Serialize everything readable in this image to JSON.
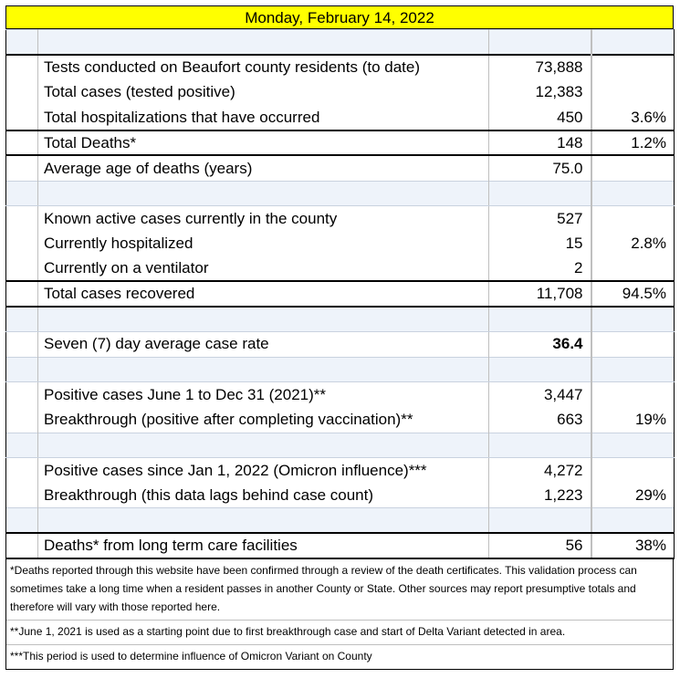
{
  "title": "Monday, February 14, 2022",
  "rows": {
    "tests": {
      "label": "Tests conducted on Beaufort county residents (to date)",
      "value": "73,888",
      "pct": ""
    },
    "total_cases": {
      "label": "Total cases (tested positive)",
      "value": "12,383",
      "pct": ""
    },
    "hospitalizations": {
      "label": "Total hospitalizations that have occurred",
      "value": "450",
      "pct": "3.6%"
    },
    "deaths": {
      "label": "Total Deaths*",
      "value": "148",
      "pct": "1.2%"
    },
    "avg_age": {
      "label": "Average age of deaths (years)",
      "value": "75.0",
      "pct": ""
    },
    "active": {
      "label": "Known active cases currently in the county",
      "value": "527",
      "pct": ""
    },
    "hospitalized": {
      "label": "Currently hospitalized",
      "value": "15",
      "pct": "2.8%"
    },
    "ventilator": {
      "label": "Currently on a ventilator",
      "value": "2",
      "pct": ""
    },
    "recovered": {
      "label": "Total cases recovered",
      "value": "11,708",
      "pct": "94.5%"
    },
    "seven_day": {
      "label": "Seven (7) day average case rate",
      "value": "36.4",
      "pct": ""
    },
    "pos_2021": {
      "label": "Positive cases  June 1 to Dec 31 (2021)**",
      "value": "3,447",
      "pct": ""
    },
    "break_2021": {
      "label": "Breakthrough (positive after completing vaccination)**",
      "value": "663",
      "pct": "19%"
    },
    "pos_2022": {
      "label": "Positive cases since Jan 1, 2022 (Omicron influence)***",
      "value": "4,272",
      "pct": ""
    },
    "break_2022": {
      "label": "Breakthrough (this data lags behind case count)",
      "value": "1,223",
      "pct": "29%"
    },
    "ltc_deaths": {
      "label": "Deaths* from long term care facilities",
      "value": "56",
      "pct": "38%"
    }
  },
  "notes": {
    "n1": "*Deaths reported through this website have been confirmed through a review of the death certificates.  This validation process can sometimes take a long time when a resident passes in another County or State.  Other sources may report presumptive totals and therefore will vary with those reported here.",
    "n2": "**June 1, 2021 is used as a starting point due to first breakthrough case and start of Delta Variant detected in area.",
    "n3": "***This period is used to determine influence of Omicron Variant on County"
  }
}
